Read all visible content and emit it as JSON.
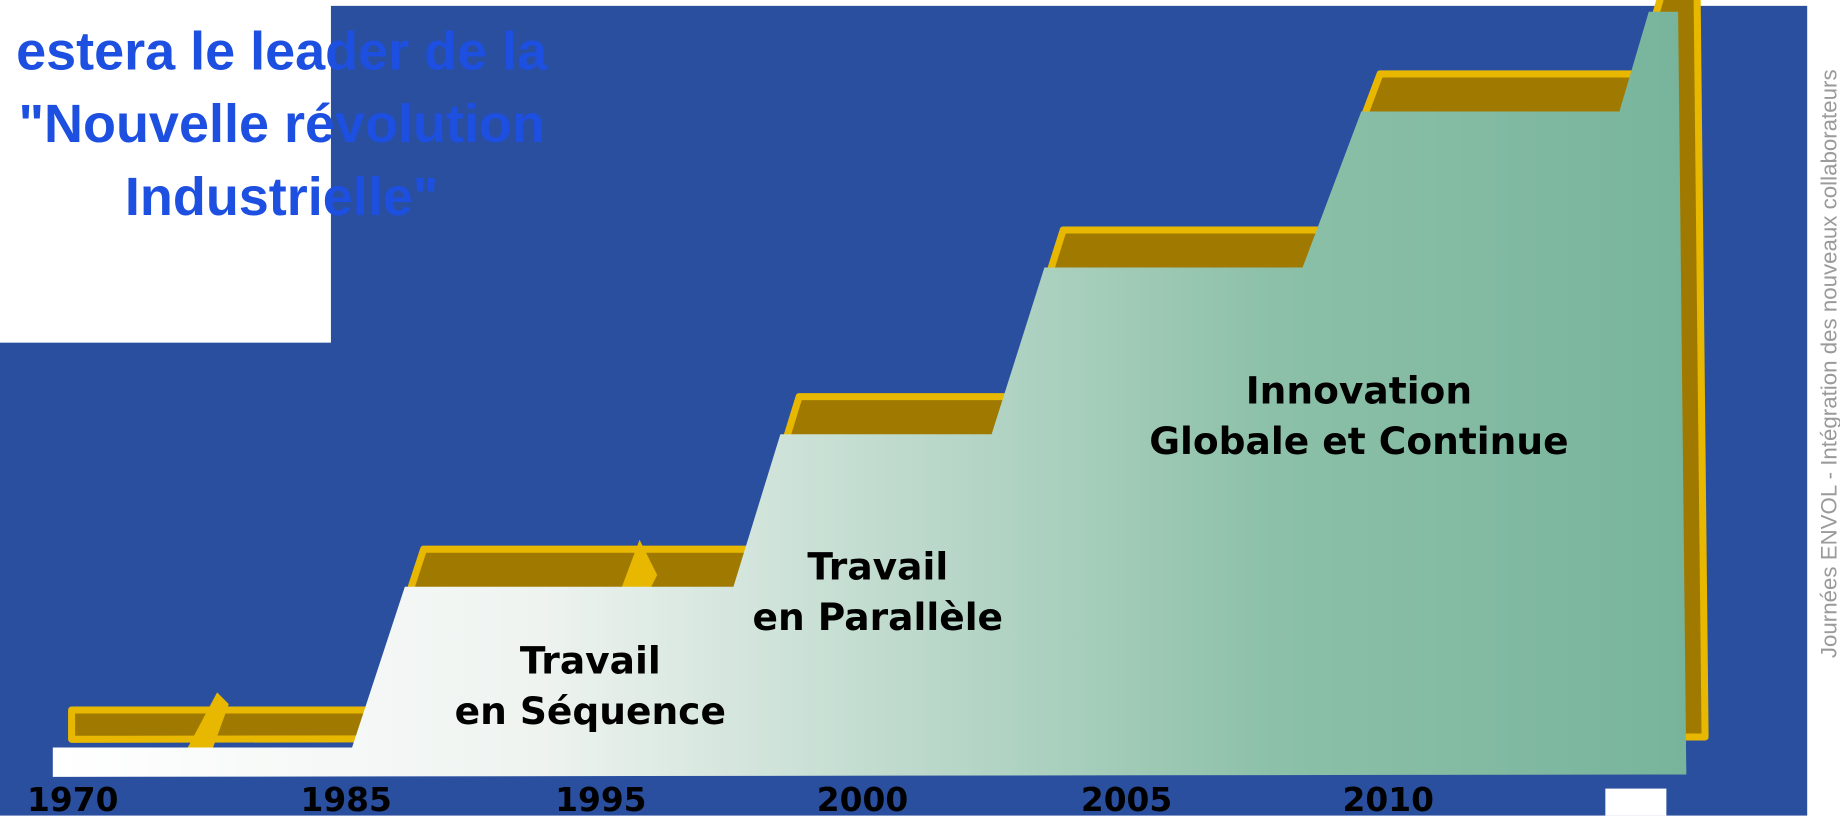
{
  "title": {
    "lines": [
      "estera le leader de la",
      "\"Nouvelle révolution",
      "Industrielle\""
    ]
  },
  "stages": [
    {
      "lines": [
        "Travail",
        "en Séquence"
      ]
    },
    {
      "lines": [
        "Travail",
        "en Parallèle"
      ]
    },
    {
      "lines": [
        "Innovation",
        "Globale et Continue"
      ]
    }
  ],
  "years": [
    "1970",
    "1985",
    "1995",
    "2000",
    "2005",
    "2010"
  ],
  "footer": "Journées ENVOL - Intégration des nouveaux collaborateurs"
}
